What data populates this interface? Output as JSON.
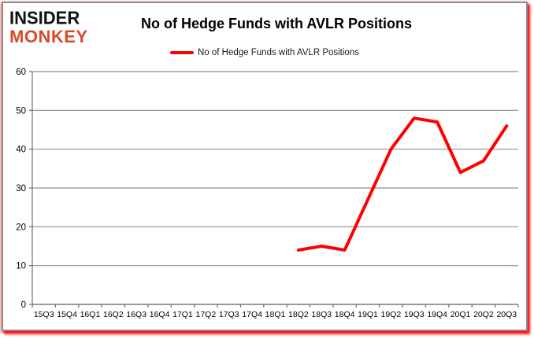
{
  "logo": {
    "line1": "INSIDER",
    "line2": "MONKEY"
  },
  "header": {
    "title": "No of Hedge Funds with AVLR Positions"
  },
  "legend": {
    "label": "No of Hedge Funds with AVLR Positions"
  },
  "colors": {
    "line": "#fe0000",
    "logo_red": "#d9492e",
    "logo_black": "#111111",
    "grid": "#8f8f8f",
    "axis": "#6e6e6e",
    "tick_text": "#000000",
    "panel_border": "#8c8c8c",
    "shadow": "#ff0000"
  },
  "chart_data": {
    "type": "line",
    "title": "No of Hedge Funds with AVLR Positions",
    "categories": [
      "15Q3",
      "15Q4",
      "16Q1",
      "16Q2",
      "16Q3",
      "16Q4",
      "17Q1",
      "17Q2",
      "17Q3",
      "17Q4",
      "18Q1",
      "18Q2",
      "18Q3",
      "18Q4",
      "19Q1",
      "19Q2",
      "19Q3",
      "19Q4",
      "20Q1",
      "20Q2",
      "20Q3"
    ],
    "series": [
      {
        "name": "No of Hedge Funds with AVLR Positions",
        "color": "#fe0000",
        "values": [
          null,
          null,
          null,
          null,
          null,
          null,
          null,
          null,
          null,
          null,
          null,
          14,
          15,
          14,
          27,
          40,
          48,
          47,
          34,
          37,
          46
        ]
      }
    ],
    "ylim": [
      0,
      60
    ],
    "yticks": [
      0,
      10,
      20,
      30,
      40,
      50,
      60
    ],
    "grid": true,
    "legend_position": "top-center"
  }
}
